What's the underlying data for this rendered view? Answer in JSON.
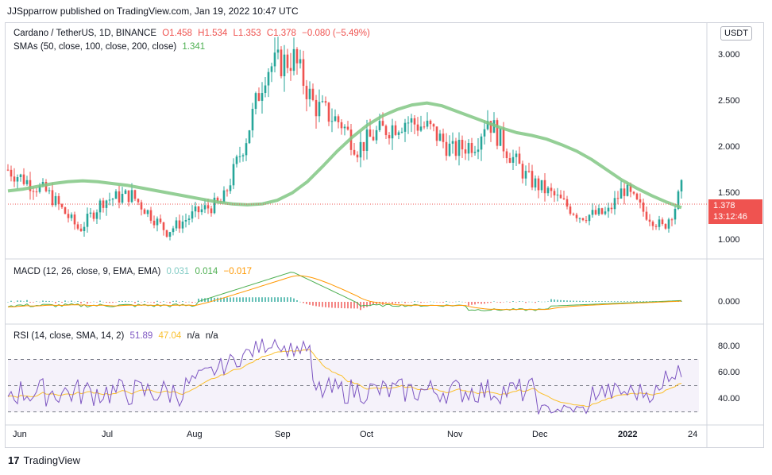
{
  "header": "JJSpparrow published on TradingView.com, Jan 19, 2022 10:47 UTC",
  "main_legend": {
    "symbol": "Cardano / TetherUS, 1D, BINANCE",
    "open": "O1.458",
    "high": "H1.534",
    "low": "L1.353",
    "close": "C1.378",
    "change": "−0.080 (−5.49%)",
    "sma_label": "SMAs (50, close, 100, close, 200, close)",
    "sma_value": "1.341"
  },
  "currency_button": "USDT",
  "price_tag": {
    "price": "1.378",
    "countdown": "13:12:46"
  },
  "price_axis": [
    "3.000",
    "2.500",
    "2.000",
    "1.500",
    "1.000"
  ],
  "macd_legend": {
    "label": "MACD (12, 26, close, 9, EMA, EMA)",
    "v1": "0.031",
    "v2": "0.014",
    "v3": "−0.017"
  },
  "macd_axis": [
    "0.000"
  ],
  "rsi_legend": {
    "label": "RSI (14, close, SMA, 14, 2)",
    "v1": "51.89",
    "v2": "47.04",
    "v3": "n/a",
    "v4": "n/a"
  },
  "rsi_axis": [
    "80.00",
    "60.00",
    "40.00"
  ],
  "time_axis": [
    "Jun",
    "Jul",
    "Aug",
    "Sep",
    "Oct",
    "Nov",
    "Dec",
    "2022",
    "24"
  ],
  "footer": "TradingView",
  "colors": {
    "up": "#26a69a",
    "down": "#ef5350",
    "sma": "#81c784",
    "macd": "#4caf50",
    "signal": "#ff9800",
    "rsi": "#7e57c2",
    "rsi_ma": "#fbc02d"
  },
  "chart_data": {
    "type": "candlestick",
    "sma_close": [
      1.52,
      1.54,
      1.57,
      1.6,
      1.62,
      1.63,
      1.62,
      1.6,
      1.58,
      1.55,
      1.52,
      1.49,
      1.46,
      1.43,
      1.4,
      1.38,
      1.37,
      1.38,
      1.42,
      1.5,
      1.62,
      1.78,
      1.95,
      2.1,
      2.23,
      2.33,
      2.4,
      2.45,
      2.47,
      2.44,
      2.38,
      2.32,
      2.26,
      2.2,
      2.15,
      2.12,
      2.08,
      2.02,
      1.95,
      1.86,
      1.75,
      1.64,
      1.55,
      1.47,
      1.4,
      1.34
    ],
    "rsi_levels": [
      "70",
      "50",
      "30"
    ]
  }
}
